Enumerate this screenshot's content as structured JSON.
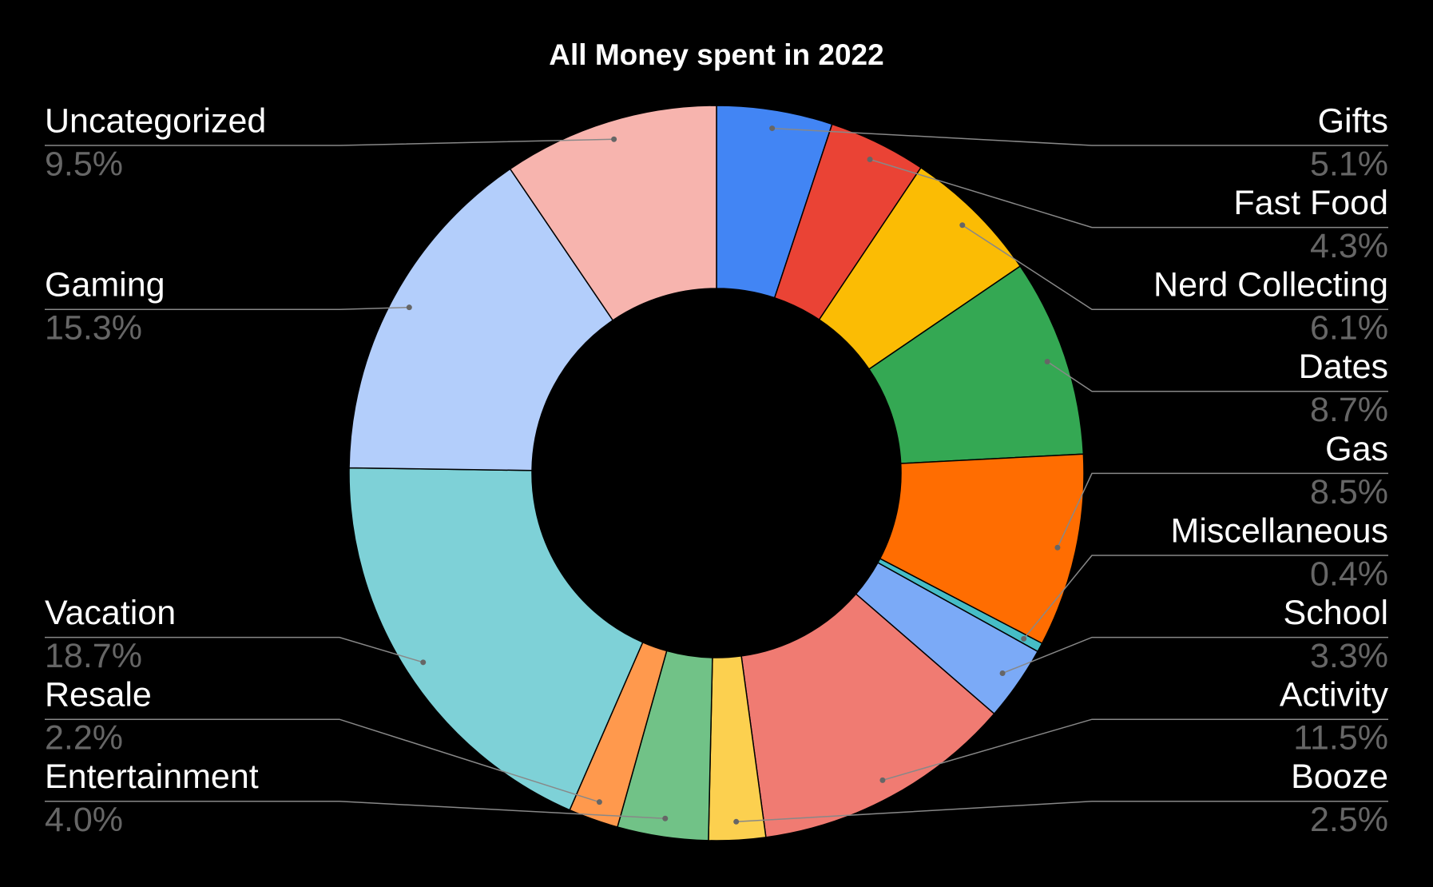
{
  "chart_data": {
    "type": "donut",
    "title": "All Money spent in 2022",
    "categories": [
      "Gifts",
      "Fast Food",
      "Nerd Collecting",
      "Dates",
      "Gas",
      "Miscellaneous",
      "School",
      "Activity",
      "Booze",
      "Entertainment",
      "Resale",
      "Vacation",
      "Gaming",
      "Uncategorized"
    ],
    "values": [
      5.1,
      4.3,
      6.1,
      8.7,
      8.5,
      0.4,
      3.3,
      11.5,
      2.5,
      4.0,
      2.2,
      18.7,
      15.3,
      9.5
    ],
    "value_labels": [
      "5.1%",
      "4.3%",
      "6.1%",
      "8.7%",
      "8.5%",
      "0.4%",
      "3.3%",
      "11.5%",
      "2.5%",
      "4.0%",
      "2.2%",
      "18.7%",
      "15.3%",
      "9.5%"
    ],
    "colors": [
      "#4285f4",
      "#ea4335",
      "#fbbc04",
      "#34a853",
      "#ff6d01",
      "#46bdc6",
      "#7baaf7",
      "#f07b72",
      "#fcd04f",
      "#71c287",
      "#ff994d",
      "#7ed1d7",
      "#b3cefb",
      "#f7b4ae"
    ]
  }
}
